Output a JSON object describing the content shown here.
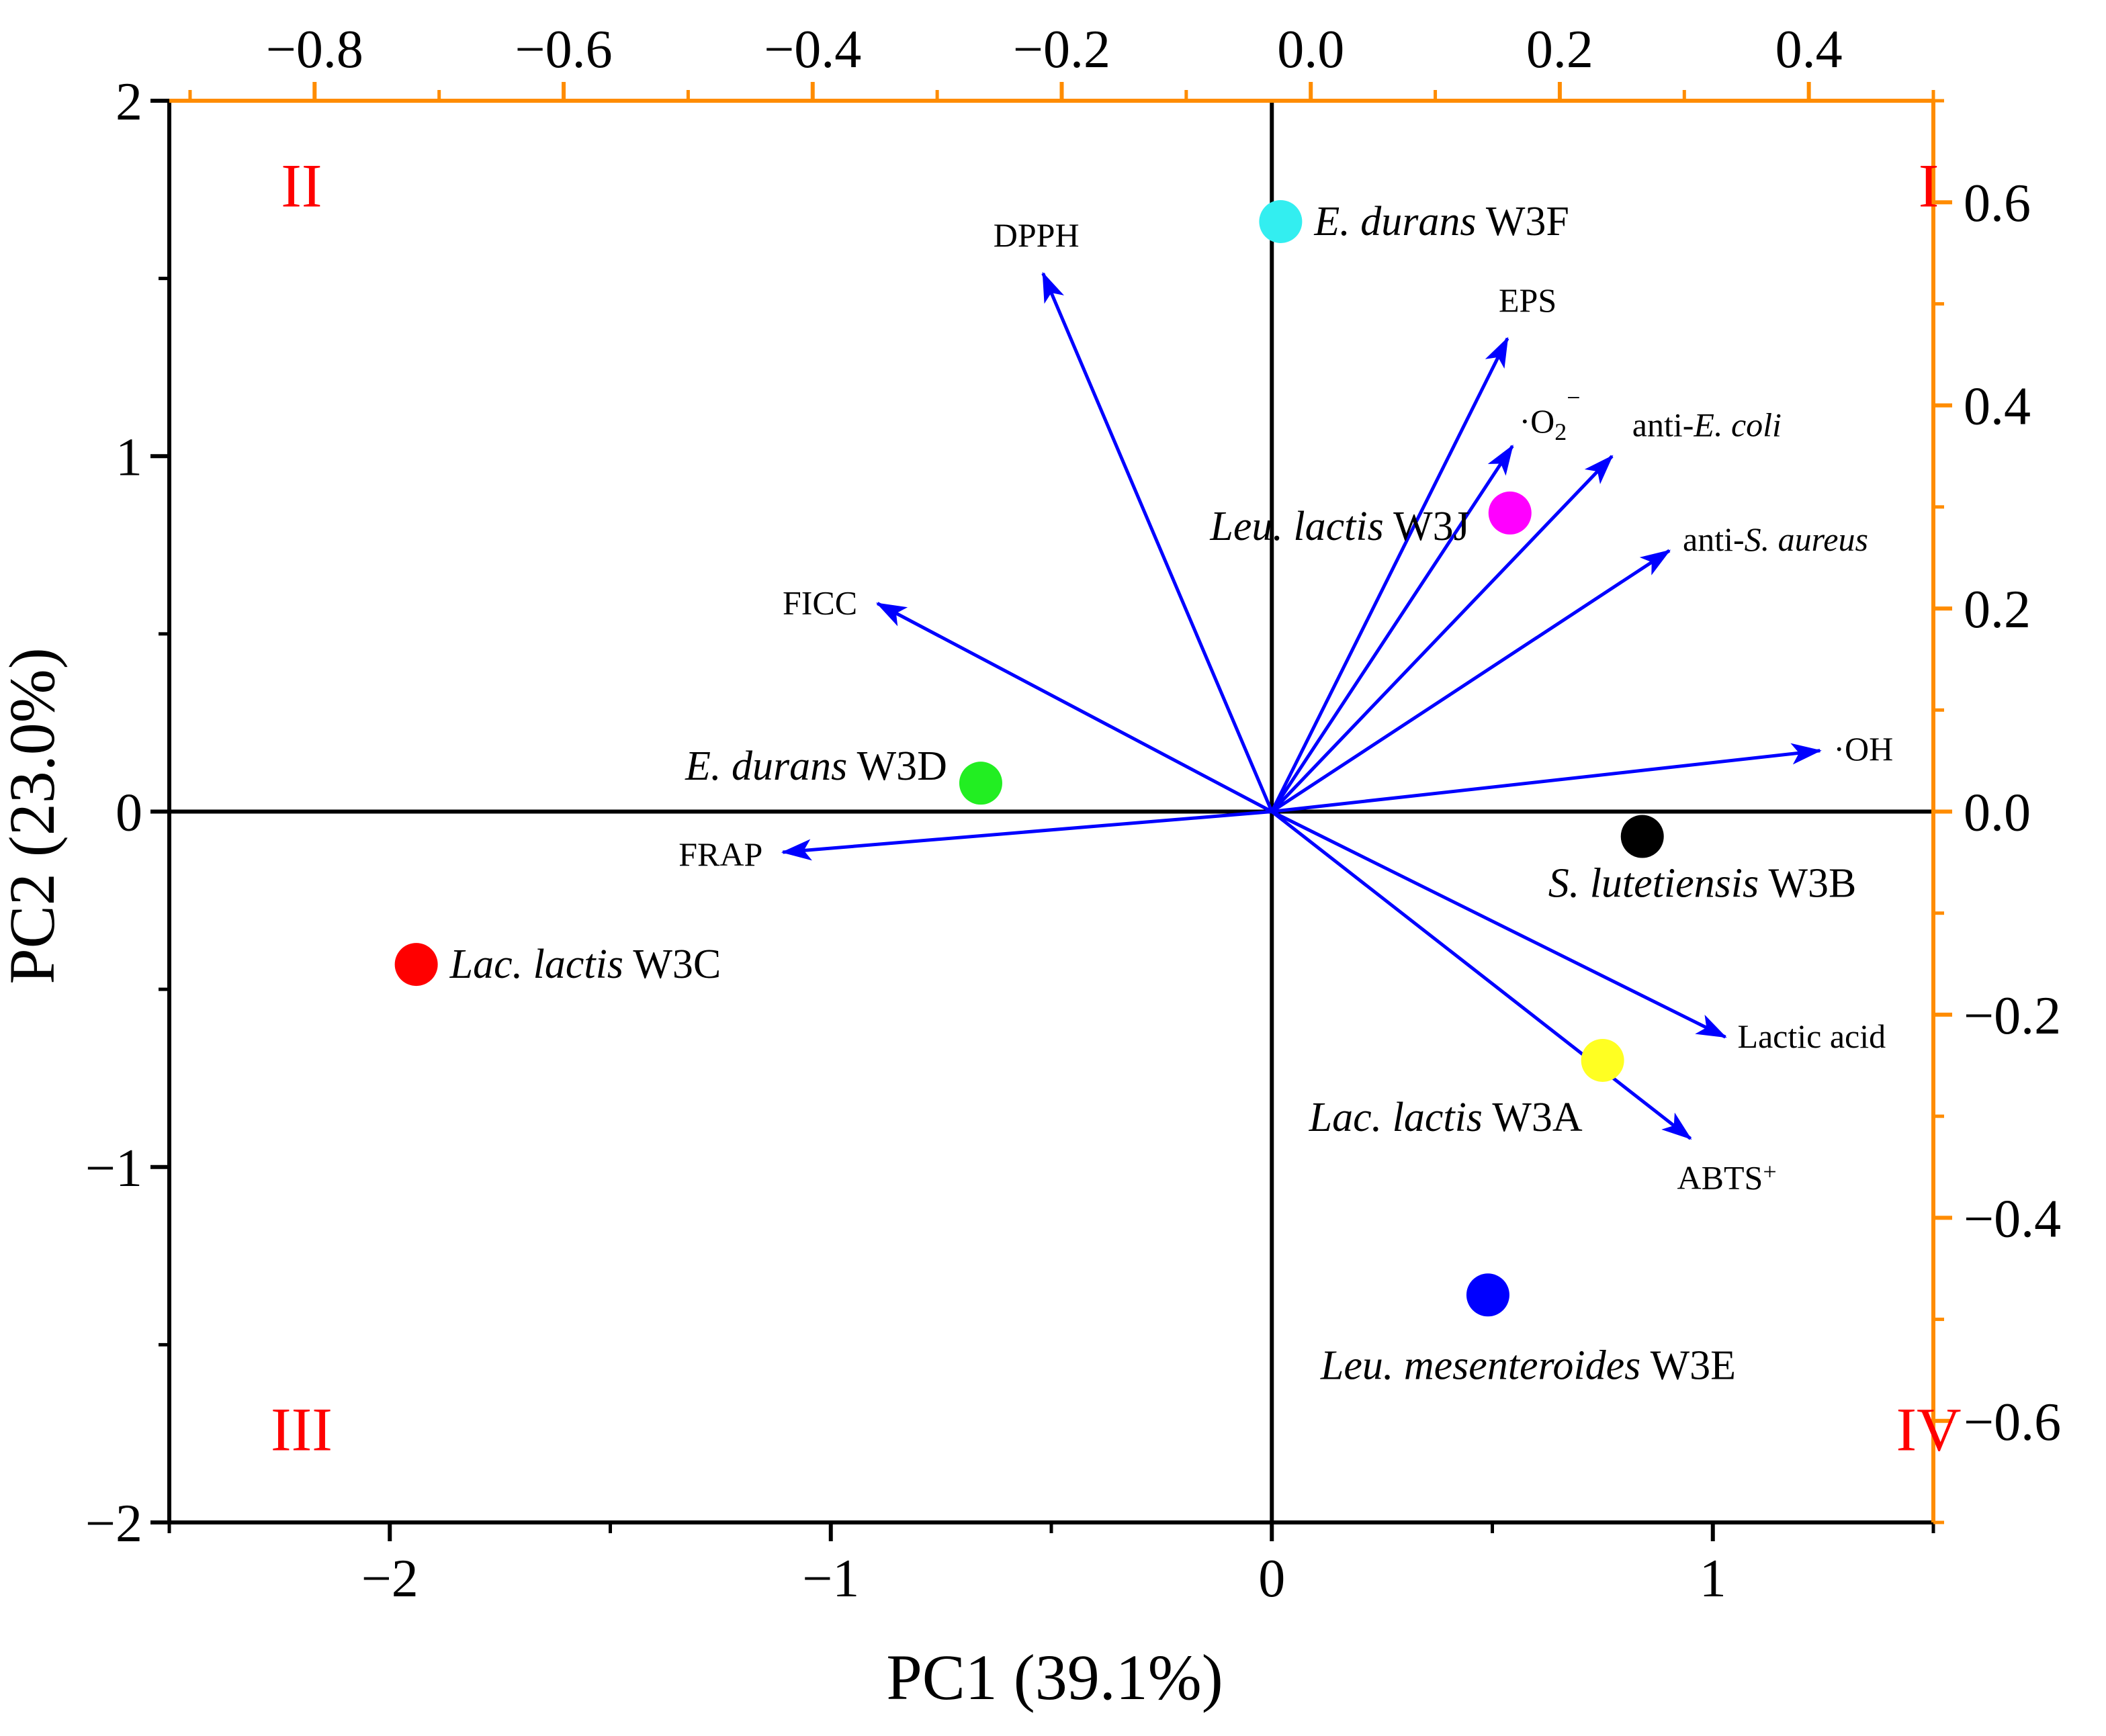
{
  "chart_data": {
    "type": "scatter",
    "subtype": "biplot",
    "xlabel": "PC1 (39.1%)",
    "ylabel": "PC2 (23.0%)",
    "score_axes": {
      "xlim": [
        -2.5,
        1.5
      ],
      "ylim": [
        -2,
        2
      ],
      "xticks": [
        -2,
        -1,
        0,
        1
      ],
      "xtick_labels": [
        "−2",
        "−1",
        "0",
        "1"
      ],
      "yticks": [
        -2,
        -1,
        0,
        1,
        2
      ],
      "ytick_labels": [
        "−2",
        "−1",
        "0",
        "1",
        "2"
      ]
    },
    "loading_axes": {
      "xlim": [
        -0.9167,
        0.5
      ],
      "ylim": [
        -0.7,
        0.7
      ],
      "xticks": [
        -0.8,
        -0.6,
        -0.4,
        -0.2,
        0.0,
        0.2,
        0.4
      ],
      "xtick_labels": [
        "−0.8",
        "−0.6",
        "−0.4",
        "−0.2",
        "0.0",
        "0.2",
        "0.4"
      ],
      "yticks": [
        0.6,
        0.4,
        0.2,
        0.0,
        -0.2,
        -0.4,
        -0.6
      ],
      "ytick_labels": [
        "0.6",
        "0.4",
        "0.2",
        "0.0",
        "−0.2",
        "−0.4",
        "−0.6"
      ],
      "color": "#ff8c00"
    },
    "quadrants": [
      {
        "label": "I",
        "x": 1.2,
        "y": 1.75
      },
      {
        "label": "II",
        "x": -2.2,
        "y": 1.75
      },
      {
        "label": "III",
        "x": -2.2,
        "y": -1.75
      },
      {
        "label": "IV",
        "x": 1.2,
        "y": -1.75
      }
    ],
    "quadrant_color": "#ff0000",
    "samples": [
      {
        "genus": "E. durans",
        "strain": "W3F",
        "x": 0.02,
        "y": 1.66,
        "color": "#33eef0"
      },
      {
        "genus": "Leu. lactis",
        "strain": "W3J",
        "x": 0.54,
        "y": 0.84,
        "color": "#ff00ff"
      },
      {
        "genus": "E. durans",
        "strain": "W3D",
        "x": -0.66,
        "y": 0.08,
        "color": "#22ee22"
      },
      {
        "genus": "S. lutetiensis",
        "strain": "W3B",
        "x": 0.84,
        "y": -0.07,
        "color": "#000000"
      },
      {
        "genus": "Lac. lactis",
        "strain": "W3C",
        "x": -1.94,
        "y": -0.43,
        "color": "#ff0000"
      },
      {
        "genus": "Lac. lactis",
        "strain": "W3A",
        "x": 0.75,
        "y": -0.7,
        "color": "#ffff22"
      },
      {
        "genus": "Leu. mesenteroides",
        "strain": "W3E",
        "x": 0.49,
        "y": -1.36,
        "color": "#0000ff"
      }
    ],
    "loadings": [
      {
        "name": "DPPH",
        "x": -0.215,
        "y": 0.53
      },
      {
        "name": "EPS",
        "x": 0.158,
        "y": 0.466
      },
      {
        "name": "O2",
        "label_prefix": "·O",
        "label_sub": "2",
        "label_sup": "−",
        "x": 0.162,
        "y": 0.36
      },
      {
        "name": "anti-E. coli",
        "label_prefix": "anti-",
        "label_ital": "E. coli",
        "x": 0.242,
        "y": 0.35
      },
      {
        "name": "anti-S. aureus",
        "label_prefix": "anti-",
        "label_ital": "S. aureus",
        "x": 0.288,
        "y": 0.257
      },
      {
        "name": "FICC",
        "x": -0.348,
        "y": 0.205
      },
      {
        "name": "OH",
        "label_prefix": "·OH",
        "x": 0.409,
        "y": 0.06
      },
      {
        "name": "FRAP",
        "x": -0.424,
        "y": -0.04
      },
      {
        "name": "Lactic acid",
        "x": 0.333,
        "y": -0.222
      },
      {
        "name": "ABTS+",
        "label_prefix": "ABTS",
        "label_sup": "+",
        "x": 0.305,
        "y": -0.322
      }
    ],
    "arrow_color": "#0000ff"
  }
}
